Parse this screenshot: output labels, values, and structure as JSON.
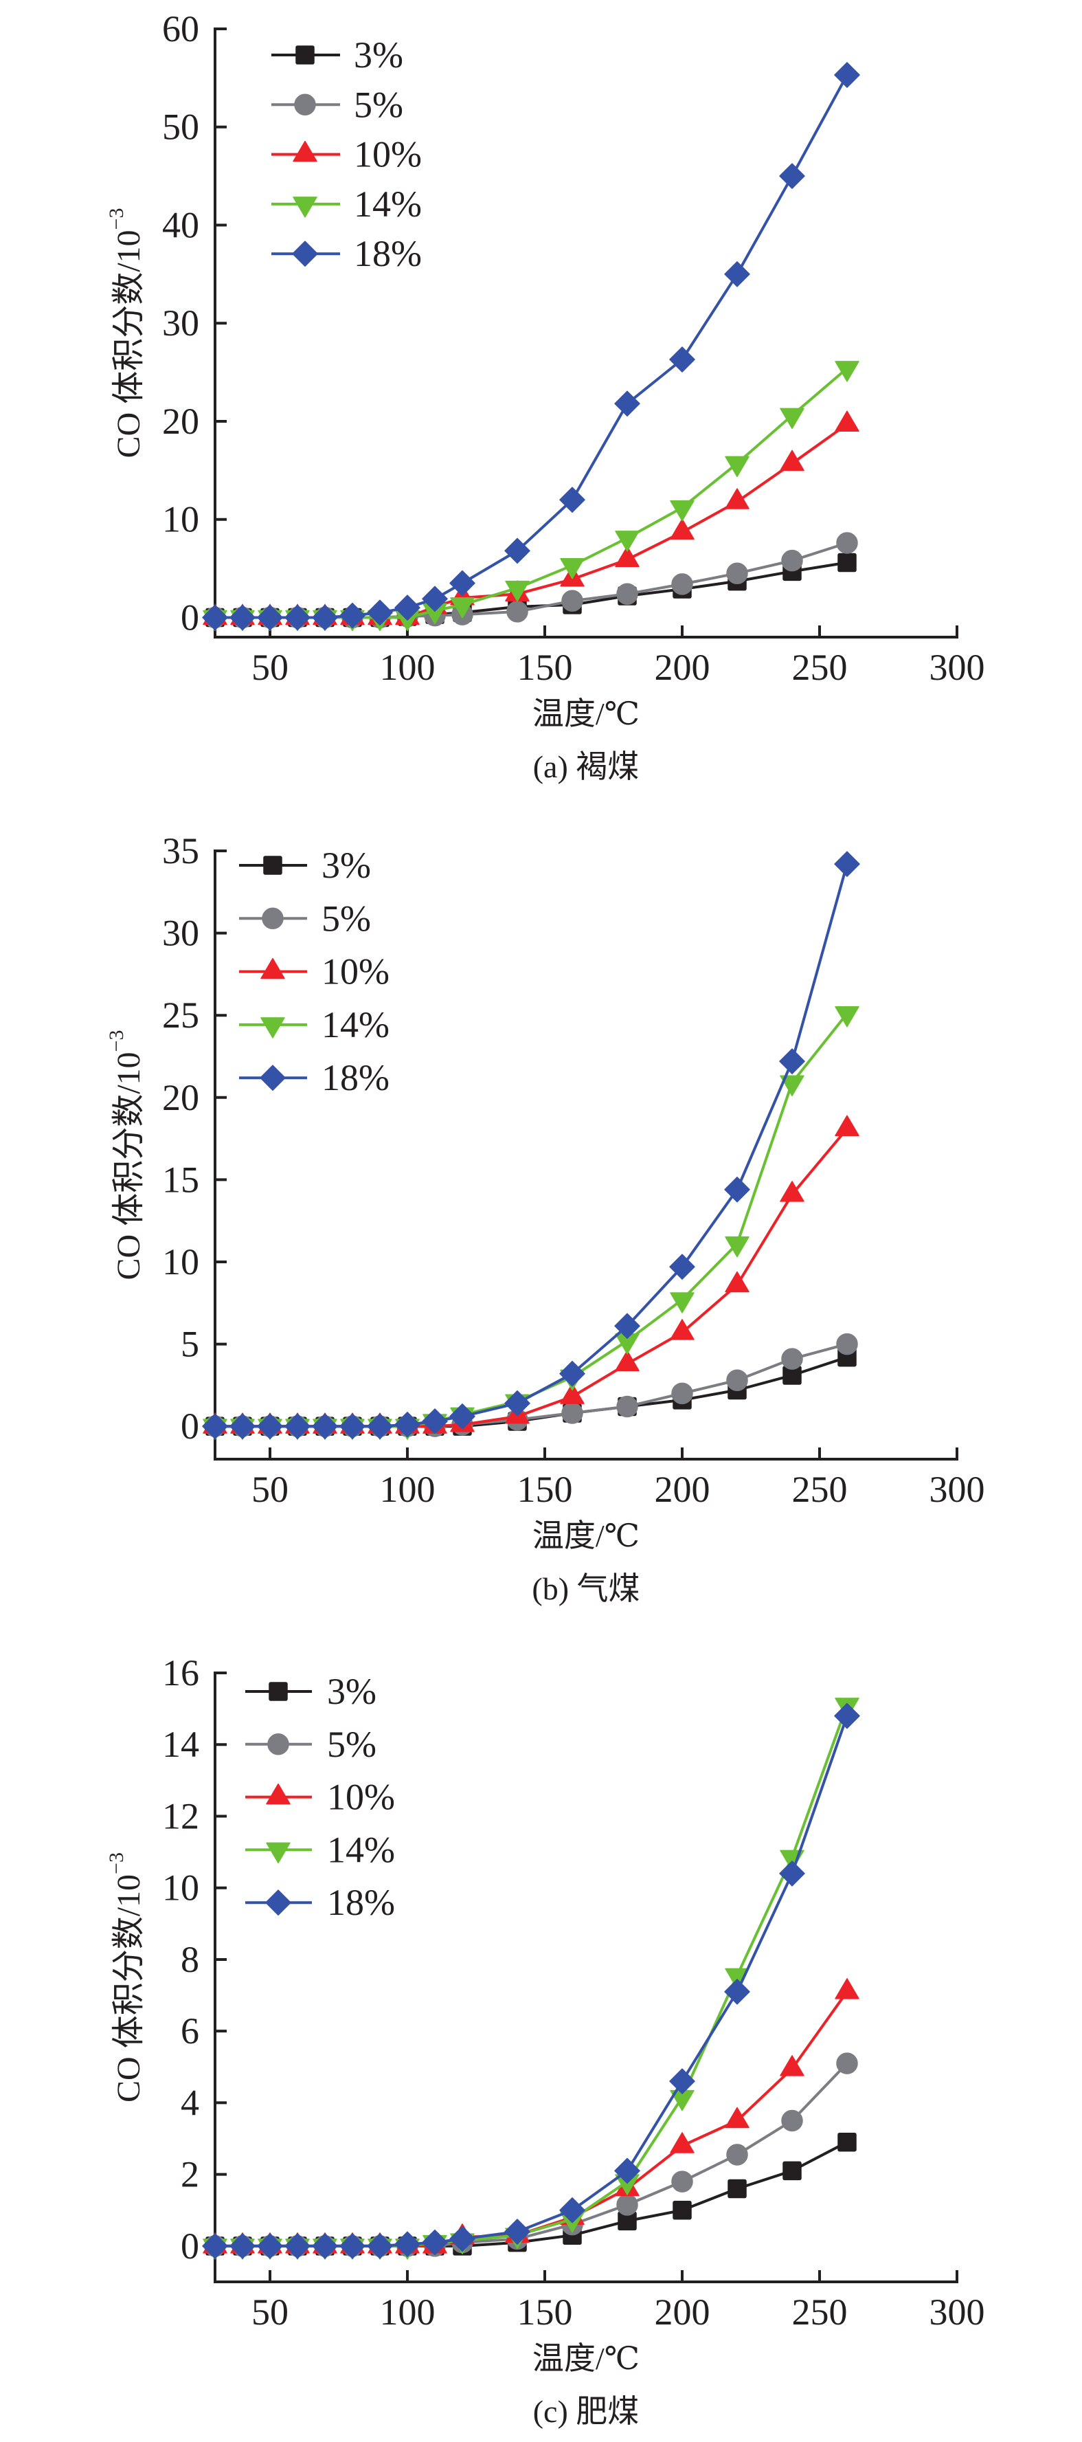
{
  "figure": {
    "panel_count": 3
  },
  "chart_data": [
    {
      "type": "line",
      "title": "(a) 褐煤",
      "xlabel": "温度/℃",
      "ylabel": "CO 体积分数/10",
      "ylabel_superscript": "−3",
      "xlim": [
        30,
        300
      ],
      "ylim": [
        -2,
        60
      ],
      "xticks": [
        50,
        100,
        150,
        200,
        250,
        300
      ],
      "yticks": [
        0,
        10,
        20,
        30,
        40,
        50,
        60
      ],
      "grid": false,
      "legend_position": "top-left",
      "x": [
        30,
        40,
        50,
        60,
        70,
        80,
        90,
        100,
        110,
        120,
        140,
        160,
        180,
        200,
        220,
        240,
        260
      ],
      "series": [
        {
          "name": "3%",
          "color": "#231f20",
          "marker": "square",
          "values": [
            0,
            0,
            0,
            0,
            0,
            0,
            0,
            0.1,
            0.3,
            0.5,
            1.1,
            1.3,
            2.2,
            2.9,
            3.7,
            4.7,
            5.6
          ]
        },
        {
          "name": "5%",
          "color": "#7b7d83",
          "marker": "circle",
          "values": [
            0,
            0,
            0,
            0,
            0,
            0,
            0,
            0.1,
            0.2,
            0.3,
            0.6,
            1.7,
            2.4,
            3.4,
            4.5,
            5.8,
            7.6
          ]
        },
        {
          "name": "10%",
          "color": "#ed2228",
          "marker": "triangle-up",
          "values": [
            0,
            0,
            0,
            0,
            0,
            0,
            0,
            0,
            1.1,
            2.0,
            2.4,
            3.9,
            5.9,
            8.7,
            11.8,
            15.7,
            19.7
          ]
        },
        {
          "name": "14%",
          "color": "#68c032",
          "marker": "triangle-down",
          "values": [
            0,
            0,
            0,
            0,
            0,
            0,
            0,
            0,
            0.7,
            1.3,
            3.0,
            5.3,
            8.1,
            11.2,
            15.7,
            20.6,
            25.4
          ]
        },
        {
          "name": "18%",
          "color": "#3452a8",
          "marker": "diamond",
          "values": [
            0,
            0,
            0,
            0,
            0,
            0.2,
            0.5,
            1.0,
            1.9,
            3.5,
            6.8,
            12.0,
            21.8,
            26.3,
            35.0,
            45.0,
            55.3
          ]
        }
      ]
    },
    {
      "type": "line",
      "title": "(b) 气煤",
      "xlabel": "温度/℃",
      "ylabel": "CO 体积分数/10",
      "ylabel_superscript": "−3",
      "xlim": [
        30,
        300
      ],
      "ylim": [
        -2,
        35
      ],
      "xticks": [
        50,
        100,
        150,
        200,
        250,
        300
      ],
      "yticks": [
        0,
        5,
        10,
        15,
        20,
        25,
        30,
        35
      ],
      "grid": false,
      "legend_position": "top-left",
      "x": [
        30,
        40,
        50,
        60,
        70,
        80,
        90,
        100,
        110,
        120,
        140,
        160,
        180,
        200,
        220,
        240,
        260
      ],
      "series": [
        {
          "name": "3%",
          "color": "#231f20",
          "marker": "square",
          "values": [
            0,
            0,
            0,
            0,
            0,
            0,
            0,
            0,
            0,
            0,
            0.3,
            0.8,
            1.2,
            1.6,
            2.2,
            3.1,
            4.2
          ]
        },
        {
          "name": "5%",
          "color": "#7b7d83",
          "marker": "circle",
          "values": [
            0,
            0,
            0,
            0,
            0,
            0,
            0,
            0,
            0,
            0.1,
            0.4,
            0.8,
            1.2,
            2.0,
            2.8,
            4.1,
            5.0
          ]
        },
        {
          "name": "10%",
          "color": "#ed2228",
          "marker": "triangle-up",
          "values": [
            0,
            0,
            0,
            0,
            0,
            0,
            0,
            0,
            0,
            0.1,
            0.6,
            1.8,
            3.8,
            5.7,
            8.6,
            14.1,
            18.1
          ]
        },
        {
          "name": "14%",
          "color": "#68c032",
          "marker": "triangle-down",
          "values": [
            0,
            0,
            0,
            0,
            0,
            0,
            0,
            0,
            0.3,
            0.7,
            1.5,
            3.0,
            5.2,
            7.7,
            11.1,
            20.9,
            25.1
          ]
        },
        {
          "name": "18%",
          "color": "#3452a8",
          "marker": "diamond",
          "values": [
            0,
            0,
            0,
            0,
            0,
            0,
            0,
            0.1,
            0.3,
            0.6,
            1.4,
            3.2,
            6.1,
            9.7,
            14.4,
            22.2,
            34.2
          ]
        }
      ]
    },
    {
      "type": "line",
      "title": "(c) 肥煤",
      "xlabel": "温度/℃",
      "ylabel": "CO 体积分数/10",
      "ylabel_superscript": "−3",
      "xlim": [
        30,
        300
      ],
      "ylim": [
        -1,
        16
      ],
      "xticks": [
        50,
        100,
        150,
        200,
        250,
        300
      ],
      "yticks": [
        0,
        2,
        4,
        6,
        8,
        10,
        12,
        14,
        16
      ],
      "grid": false,
      "legend_position": "top-left",
      "x": [
        30,
        40,
        50,
        60,
        70,
        80,
        90,
        100,
        110,
        120,
        140,
        160,
        180,
        200,
        220,
        240,
        260
      ],
      "series": [
        {
          "name": "3%",
          "color": "#231f20",
          "marker": "square",
          "values": [
            0,
            0,
            0,
            0,
            0,
            0,
            0,
            0,
            0,
            0,
            0.1,
            0.3,
            0.7,
            1.0,
            1.6,
            2.1,
            2.9
          ]
        },
        {
          "name": "5%",
          "color": "#7b7d83",
          "marker": "circle",
          "values": [
            0,
            0,
            0,
            0,
            0,
            0,
            0,
            0,
            0,
            0.1,
            0.2,
            0.6,
            1.15,
            1.8,
            2.55,
            3.5,
            5.1
          ]
        },
        {
          "name": "10%",
          "color": "#ed2228",
          "marker": "triangle-up",
          "values": [
            0,
            0,
            0,
            0,
            0,
            0,
            0,
            0,
            0,
            0.25,
            0.3,
            0.8,
            1.6,
            2.8,
            3.5,
            4.95,
            7.1
          ]
        },
        {
          "name": "14%",
          "color": "#68c032",
          "marker": "triangle-down",
          "values": [
            0,
            0,
            0,
            0,
            0,
            0,
            0,
            0,
            0.1,
            0.15,
            0.3,
            0.75,
            1.8,
            4.15,
            7.55,
            10.85,
            15.1
          ]
        },
        {
          "name": "18%",
          "color": "#3452a8",
          "marker": "diamond",
          "values": [
            0,
            0,
            0,
            0,
            0,
            0,
            0,
            0.05,
            0.1,
            0.2,
            0.4,
            1.0,
            2.1,
            4.6,
            7.1,
            10.4,
            14.8
          ]
        }
      ]
    }
  ]
}
